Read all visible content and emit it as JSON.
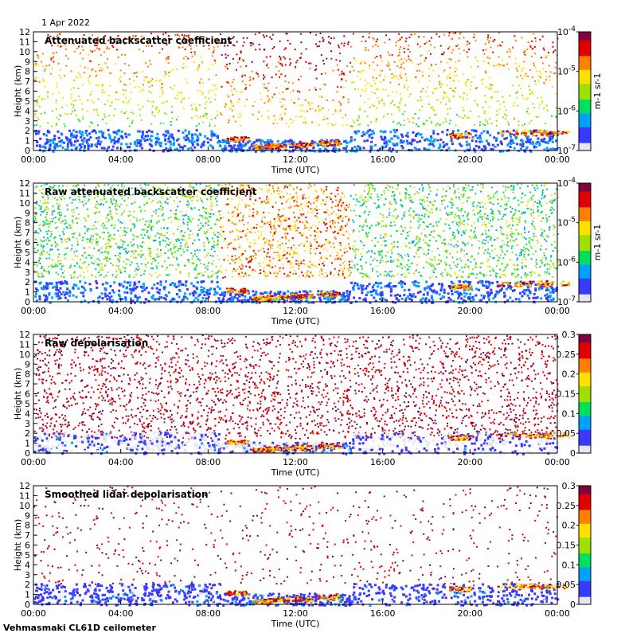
{
  "date_label": "1 Apr 2022",
  "footer_label": "Vehmasmaki CL61D ceilometer",
  "chart_data": [
    {
      "type": "heatmap",
      "title": "Attenuated backscatter coefficient",
      "xlabel": "Time (UTC)",
      "ylabel": "Height (km)",
      "xticks": [
        "00:00",
        "04:00",
        "08:00",
        "12:00",
        "16:00",
        "20:00",
        "00:00"
      ],
      "xlim_hours": [
        0,
        24
      ],
      "yticks": [
        "0",
        "1",
        "2",
        "3",
        "4",
        "5",
        "6",
        "7",
        "8",
        "9",
        "10",
        "11",
        "12"
      ],
      "ylim": [
        0,
        12
      ],
      "colorbar": {
        "scale": "log",
        "range": [
          1e-07,
          0.0001
        ],
        "ticks": [
          "10-7",
          "10-6",
          "10-5",
          "10-4"
        ],
        "units": "m-1 sr-1",
        "colormap": [
          "#e6e6f5",
          "#3a3aff",
          "#00a0ff",
          "#00e060",
          "#a0e000",
          "#ffe000",
          "#ff8000",
          "#e00000",
          "#800040"
        ]
      }
    },
    {
      "type": "heatmap",
      "title": "Raw attenuated backscatter coefficient",
      "xlabel": "Time (UTC)",
      "ylabel": "Height (km)",
      "xticks": [
        "00:00",
        "04:00",
        "08:00",
        "12:00",
        "16:00",
        "20:00",
        "00:00"
      ],
      "xlim_hours": [
        0,
        24
      ],
      "yticks": [
        "0",
        "1",
        "2",
        "3",
        "4",
        "5",
        "6",
        "7",
        "8",
        "9",
        "10",
        "11",
        "12"
      ],
      "ylim": [
        0,
        12
      ],
      "colorbar": {
        "scale": "log",
        "range": [
          1e-07,
          0.0001
        ],
        "ticks": [
          "10-7",
          "10-6",
          "10-5",
          "10-4"
        ],
        "units": "m-1 sr-1",
        "colormap": [
          "#e6e6f5",
          "#3a3aff",
          "#00a0ff",
          "#00e060",
          "#a0e000",
          "#ffe000",
          "#ff8000",
          "#e00000",
          "#800040"
        ]
      }
    },
    {
      "type": "heatmap",
      "title": "Raw depolarisation",
      "xlabel": "Time (UTC)",
      "ylabel": "Height (km)",
      "xticks": [
        "00:00",
        "04:00",
        "08:00",
        "12:00",
        "16:00",
        "20:00",
        "00:00"
      ],
      "xlim_hours": [
        0,
        24
      ],
      "yticks": [
        "0",
        "1",
        "2",
        "3",
        "4",
        "5",
        "6",
        "7",
        "8",
        "9",
        "10",
        "11",
        "12"
      ],
      "ylim": [
        0,
        12
      ],
      "colorbar": {
        "scale": "linear",
        "range": [
          0,
          0.3
        ],
        "ticks": [
          "0",
          "0.05",
          "0.1",
          "0.15",
          "0.2",
          "0.25",
          "0.3"
        ],
        "units": "",
        "colormap": [
          "#e6e6f5",
          "#3a3aff",
          "#00a0ff",
          "#00e060",
          "#a0e000",
          "#ffe000",
          "#ff8000",
          "#e00000",
          "#800040"
        ]
      }
    },
    {
      "type": "heatmap",
      "title": "Smoothed lidar depolarisation",
      "xlabel": "Time (UTC)",
      "ylabel": "Height (km)",
      "xticks": [
        "00:00",
        "04:00",
        "08:00",
        "12:00",
        "16:00",
        "20:00",
        "00:00"
      ],
      "xlim_hours": [
        0,
        24
      ],
      "yticks": [
        "0",
        "1",
        "2",
        "3",
        "4",
        "5",
        "6",
        "7",
        "8",
        "9",
        "10",
        "11",
        "12"
      ],
      "ylim": [
        0,
        12
      ],
      "colorbar": {
        "scale": "linear",
        "range": [
          0,
          0.3
        ],
        "ticks": [
          "0",
          "0.05",
          "0.1",
          "0.15",
          "0.2",
          "0.25",
          "0.3"
        ],
        "units": "",
        "colormap": [
          "#e6e6f5",
          "#3a3aff",
          "#00a0ff",
          "#00e060",
          "#a0e000",
          "#ffe000",
          "#ff8000",
          "#e00000",
          "#800040"
        ]
      }
    }
  ]
}
